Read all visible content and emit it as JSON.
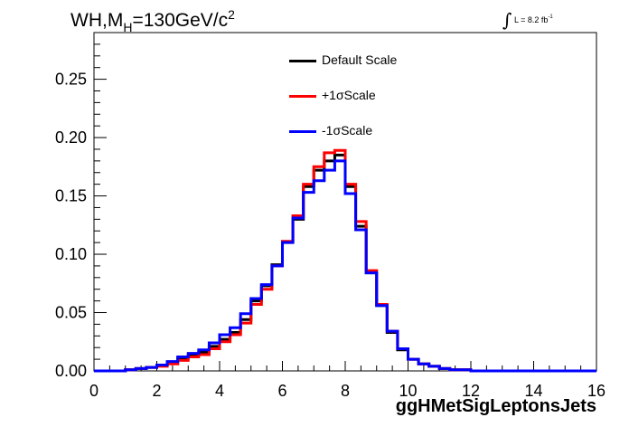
{
  "title": {
    "prefix": "WH,M",
    "subscript": "H",
    "suffix": "=130GeV/c",
    "superscript": "2"
  },
  "luminosity": {
    "integral_symbol": "∫",
    "text": "L = 8.2 fb",
    "exponent": "-1"
  },
  "chart_data": {
    "type": "line",
    "xlabel": "ggHMetSigLeptonsJets",
    "ylabel": "",
    "xlim": [
      0,
      16
    ],
    "ylim": [
      0,
      0.29
    ],
    "xticks": [
      "0",
      "2",
      "4",
      "6",
      "8",
      "10",
      "12",
      "14",
      "16"
    ],
    "yticks": [
      "0.00",
      "0.05",
      "0.10",
      "0.15",
      "0.20",
      "0.25"
    ],
    "bin_edges": [
      0,
      0.333,
      0.667,
      1,
      1.333,
      1.667,
      2,
      2.333,
      2.667,
      3,
      3.333,
      3.667,
      4,
      4.333,
      4.667,
      5,
      5.333,
      5.667,
      6,
      6.333,
      6.667,
      7,
      7.333,
      7.667,
      8,
      8.333,
      8.667,
      9,
      9.333,
      9.667,
      10,
      10.333,
      10.667,
      11,
      11.333,
      11.667,
      12,
      12.333,
      12.667,
      13,
      13.333,
      13.667,
      14,
      14.333,
      14.667,
      15,
      15.333,
      15.667,
      16
    ],
    "series": [
      {
        "name": "Default Scale",
        "color": "#000000",
        "values": [
          0,
          0,
          0,
          0.001,
          0.002,
          0.003,
          0.005,
          0.007,
          0.011,
          0.013,
          0.016,
          0.021,
          0.027,
          0.033,
          0.044,
          0.06,
          0.073,
          0.091,
          0.111,
          0.13,
          0.158,
          0.172,
          0.18,
          0.185,
          0.158,
          0.124,
          0.084,
          0.056,
          0.033,
          0.018,
          0.01,
          0.006,
          0.004,
          0.002,
          0.001,
          0.001,
          0,
          0,
          0,
          0,
          0,
          0,
          0,
          0,
          0,
          0,
          0,
          0
        ]
      },
      {
        "name": "+1σScale",
        "color": "#ff0000",
        "values": [
          0,
          0,
          0,
          0.001,
          0.002,
          0.003,
          0.004,
          0.006,
          0.009,
          0.012,
          0.014,
          0.019,
          0.025,
          0.031,
          0.041,
          0.057,
          0.07,
          0.09,
          0.111,
          0.133,
          0.16,
          0.175,
          0.187,
          0.189,
          0.16,
          0.128,
          0.086,
          0.057,
          0.034,
          0.019,
          0.01,
          0.006,
          0.004,
          0.002,
          0.001,
          0.001,
          0,
          0,
          0,
          0,
          0,
          0,
          0,
          0,
          0,
          0,
          0,
          0
        ]
      },
      {
        "name": "-1σScale",
        "color": "#0000ff",
        "values": [
          0,
          0,
          0,
          0.001,
          0.002,
          0.003,
          0.005,
          0.008,
          0.012,
          0.015,
          0.018,
          0.024,
          0.031,
          0.037,
          0.049,
          0.062,
          0.074,
          0.09,
          0.11,
          0.131,
          0.153,
          0.163,
          0.172,
          0.18,
          0.152,
          0.121,
          0.084,
          0.056,
          0.034,
          0.019,
          0.01,
          0.006,
          0.004,
          0.002,
          0.001,
          0.001,
          0,
          0,
          0,
          0,
          0,
          0,
          0,
          0,
          0,
          0,
          0,
          0
        ]
      }
    ],
    "legend": "top-center",
    "grid": false
  }
}
